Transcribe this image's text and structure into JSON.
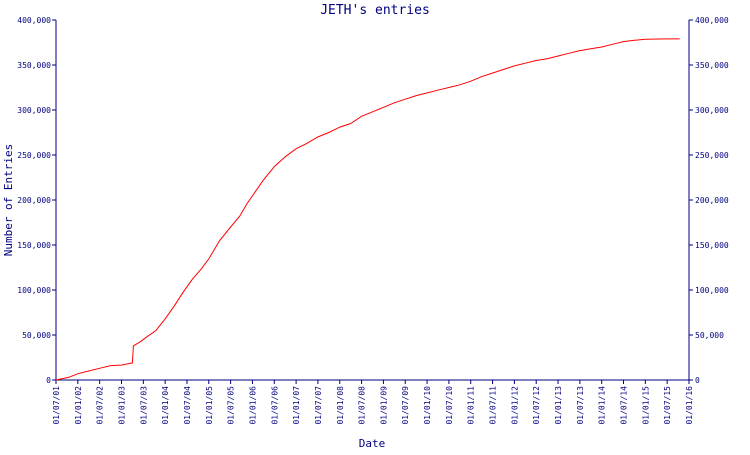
{
  "chart_data": {
    "type": "line",
    "title": "JETH's entries",
    "xlabel": "Date",
    "ylabel": "Number of Entries",
    "ylim": [
      0,
      400000
    ],
    "y_ticks": [
      "0",
      "50,000",
      "100,000",
      "150,000",
      "200,000",
      "250,000",
      "300,000",
      "350,000",
      "400,000"
    ],
    "y_tick_values": [
      0,
      50000,
      100000,
      150000,
      200000,
      250000,
      300000,
      350000,
      400000
    ],
    "x_range": [
      "2001-07-01",
      "2016-01-01"
    ],
    "x_ticks": [
      "01/07/01",
      "01/01/02",
      "01/07/02",
      "01/01/03",
      "01/07/03",
      "01/01/04",
      "01/07/04",
      "01/01/05",
      "01/07/05",
      "01/01/06",
      "01/07/06",
      "01/01/07",
      "01/07/07",
      "01/01/08",
      "01/07/08",
      "01/01/09",
      "01/07/09",
      "01/01/10",
      "01/07/10",
      "01/01/11",
      "01/07/11",
      "01/01/12",
      "01/07/12",
      "01/01/13",
      "01/07/13",
      "01/01/14",
      "01/07/14",
      "01/01/15",
      "01/07/15",
      "01/01/16"
    ],
    "grid": false,
    "line_color": "#ff0000",
    "axis_color": "#000080",
    "series": [
      {
        "values": [
          {
            "x": "2001-07-01",
            "y": 0
          },
          {
            "x": "2001-10-15",
            "y": 3000
          },
          {
            "x": "2002-01-01",
            "y": 7000
          },
          {
            "x": "2002-04-01",
            "y": 10000
          },
          {
            "x": "2002-07-01",
            "y": 13000
          },
          {
            "x": "2002-10-01",
            "y": 16000
          },
          {
            "x": "2003-01-01",
            "y": 16500
          },
          {
            "x": "2003-04-01",
            "y": 19000
          },
          {
            "x": "2003-04-10",
            "y": 38000
          },
          {
            "x": "2003-06-01",
            "y": 42000
          },
          {
            "x": "2003-08-01",
            "y": 48000
          },
          {
            "x": "2003-10-15",
            "y": 55000
          },
          {
            "x": "2004-01-01",
            "y": 68000
          },
          {
            "x": "2004-03-15",
            "y": 82000
          },
          {
            "x": "2004-06-01",
            "y": 98000
          },
          {
            "x": "2004-08-15",
            "y": 112000
          },
          {
            "x": "2004-11-01",
            "y": 124000
          },
          {
            "x": "2005-01-01",
            "y": 135000
          },
          {
            "x": "2005-04-01",
            "y": 155000
          },
          {
            "x": "2005-07-01",
            "y": 170000
          },
          {
            "x": "2005-09-15",
            "y": 182000
          },
          {
            "x": "2005-11-15",
            "y": 196000
          },
          {
            "x": "2006-01-01",
            "y": 205000
          },
          {
            "x": "2006-04-01",
            "y": 222000
          },
          {
            "x": "2006-07-01",
            "y": 237000
          },
          {
            "x": "2006-10-01",
            "y": 248000
          },
          {
            "x": "2007-01-01",
            "y": 257000
          },
          {
            "x": "2007-04-01",
            "y": 263000
          },
          {
            "x": "2007-07-01",
            "y": 270000
          },
          {
            "x": "2007-10-01",
            "y": 275000
          },
          {
            "x": "2008-01-01",
            "y": 281000
          },
          {
            "x": "2008-04-01",
            "y": 285000
          },
          {
            "x": "2008-07-01",
            "y": 293000
          },
          {
            "x": "2008-10-01",
            "y": 298000
          },
          {
            "x": "2009-01-01",
            "y": 303000
          },
          {
            "x": "2009-04-01",
            "y": 308000
          },
          {
            "x": "2009-07-01",
            "y": 312000
          },
          {
            "x": "2009-10-01",
            "y": 316000
          },
          {
            "x": "2010-01-01",
            "y": 319000
          },
          {
            "x": "2010-04-01",
            "y": 322000
          },
          {
            "x": "2010-07-01",
            "y": 325000
          },
          {
            "x": "2010-10-01",
            "y": 328000
          },
          {
            "x": "2011-01-01",
            "y": 332000
          },
          {
            "x": "2011-04-01",
            "y": 337000
          },
          {
            "x": "2011-07-01",
            "y": 341000
          },
          {
            "x": "2011-10-01",
            "y": 345000
          },
          {
            "x": "2012-01-01",
            "y": 349000
          },
          {
            "x": "2012-04-01",
            "y": 352000
          },
          {
            "x": "2012-07-01",
            "y": 355000
          },
          {
            "x": "2012-10-01",
            "y": 357000
          },
          {
            "x": "2013-01-01",
            "y": 360000
          },
          {
            "x": "2013-04-01",
            "y": 363000
          },
          {
            "x": "2013-07-01",
            "y": 366000
          },
          {
            "x": "2013-10-01",
            "y": 368000
          },
          {
            "x": "2014-01-01",
            "y": 370000
          },
          {
            "x": "2014-04-01",
            "y": 373000
          },
          {
            "x": "2014-07-01",
            "y": 376000
          },
          {
            "x": "2014-10-01",
            "y": 377500
          },
          {
            "x": "2015-01-01",
            "y": 378500
          },
          {
            "x": "2015-07-01",
            "y": 379000
          },
          {
            "x": "2015-10-15",
            "y": 379000
          }
        ]
      }
    ]
  }
}
